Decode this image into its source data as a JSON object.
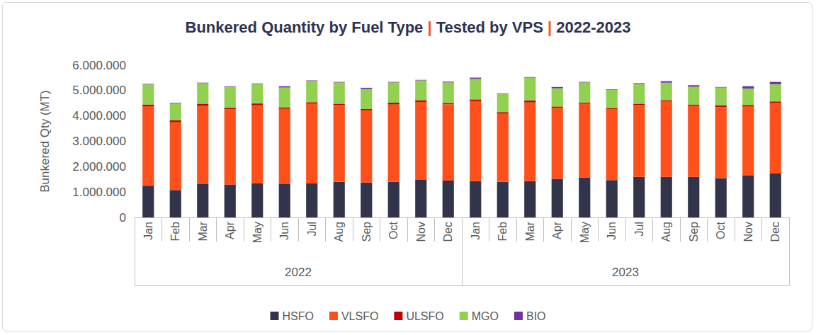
{
  "chart_data": {
    "type": "bar",
    "title": "Bunkered Quantity by Fuel Type | Tested by VPS | 2022-2023",
    "y_label": "Bunkered Qty (MT)",
    "categories": [
      "Jan",
      "Feb",
      "Mar",
      "Apr",
      "May",
      "Jun",
      "Jul",
      "Aug",
      "Sep",
      "Oct",
      "Nov",
      "Dec",
      "Jan",
      "Feb",
      "Mar",
      "Apr",
      "May",
      "Jun",
      "Jul",
      "Aug",
      "Sep",
      "Oct",
      "Nov",
      "Dec"
    ],
    "category_groups": [
      {
        "label": "2022",
        "span": 12
      },
      {
        "label": "2023",
        "span": 12
      }
    ],
    "stacked": true,
    "grid": false,
    "legend": "bottom",
    "ylim": [
      0,
      6000000
    ],
    "yticks": [
      0,
      {
        "value": 1000000,
        "label": "1.000.000"
      },
      {
        "value": 2000000,
        "label": "2.000.000"
      },
      {
        "value": 3000000,
        "label": "3.000.000"
      },
      {
        "value": 4000000,
        "label": "4.000.000"
      },
      {
        "value": 5000000,
        "label": "5.000.000"
      },
      {
        "value": 6000000,
        "label": "6.000.000"
      }
    ],
    "series": [
      {
        "name": "HSFO",
        "color": "#31344b",
        "values": [
          1250000,
          1080000,
          1330000,
          1300000,
          1350000,
          1330000,
          1350000,
          1400000,
          1380000,
          1400000,
          1480000,
          1450000,
          1430000,
          1400000,
          1430000,
          1520000,
          1580000,
          1470000,
          1600000,
          1600000,
          1600000,
          1550000,
          1650000,
          1730000
        ]
      },
      {
        "name": "VLSFO",
        "color": "#ff4f1a",
        "values": [
          3130000,
          2670000,
          3070000,
          2970000,
          3070000,
          2950000,
          3130000,
          3030000,
          2840000,
          3050000,
          3070000,
          3010000,
          3150000,
          2700000,
          3100000,
          2800000,
          2900000,
          2800000,
          2830000,
          2970000,
          2800000,
          2800000,
          2730000,
          2790000
        ]
      },
      {
        "name": "ULSFO",
        "color": "#c00000",
        "values": [
          70000,
          80000,
          80000,
          50000,
          70000,
          60000,
          60000,
          50000,
          50000,
          70000,
          70000,
          50000,
          70000,
          50000,
          80000,
          50000,
          50000,
          40000,
          50000,
          50000,
          50000,
          70000,
          50000,
          50000
        ]
      },
      {
        "name": "MGO",
        "color": "#92d050",
        "values": [
          790000,
          670000,
          810000,
          830000,
          770000,
          780000,
          840000,
          840000,
          790000,
          800000,
          780000,
          810000,
          810000,
          720000,
          900000,
          720000,
          790000,
          720000,
          780000,
          690000,
          700000,
          700000,
          650000,
          680000
        ]
      },
      {
        "name": "BIO",
        "color": "#7030a0",
        "values": [
          20000,
          20000,
          20000,
          20000,
          20000,
          50000,
          20000,
          20000,
          50000,
          20000,
          20000,
          30000,
          50000,
          20000,
          20000,
          50000,
          20000,
          20000,
          30000,
          60000,
          60000,
          20000,
          90000,
          90000
        ]
      }
    ]
  }
}
